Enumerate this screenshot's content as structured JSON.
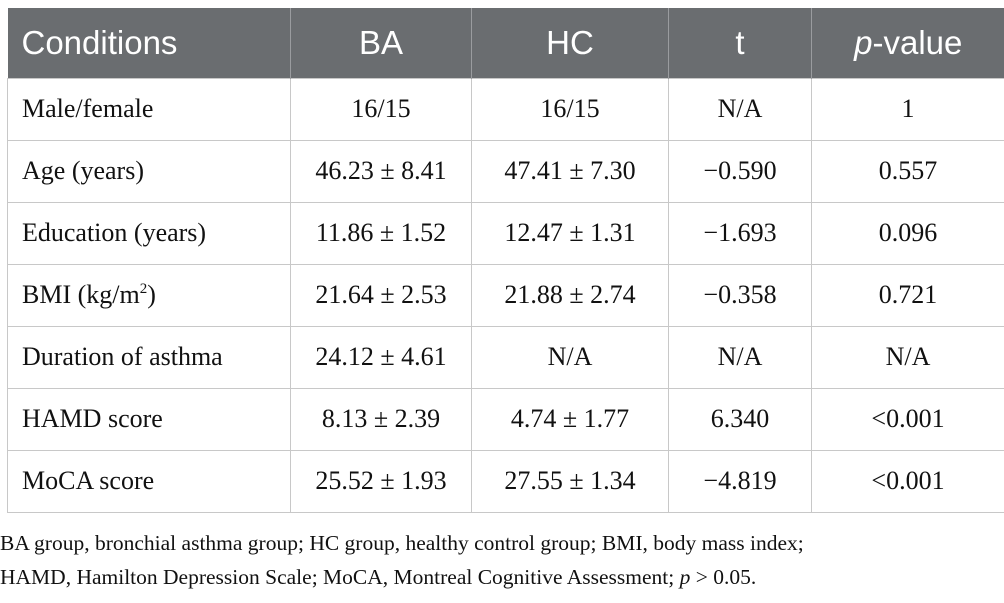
{
  "table": {
    "headers": {
      "conditions": "Conditions",
      "ba": "BA",
      "hc": "HC",
      "t": "t",
      "p_prefix": "p",
      "p_suffix": "-value"
    },
    "rows": [
      {
        "condition": "Male/female",
        "ba": "16/15",
        "hc": "16/15",
        "t": "N/A",
        "p": "1"
      },
      {
        "condition": "Age (years)",
        "ba": "46.23 ± 8.41",
        "hc": "47.41 ± 7.30",
        "t": "−0.590",
        "p": "0.557"
      },
      {
        "condition": "Education (years)",
        "ba": "11.86 ± 1.52",
        "hc": "12.47 ± 1.31",
        "t": "−1.693",
        "p": "0.096"
      },
      {
        "condition_base": "BMI (kg/m",
        "condition_sup": "2",
        "condition_end": ")",
        "ba": "21.64 ± 2.53",
        "hc": "21.88 ± 2.74",
        "t": "−0.358",
        "p": "0.721"
      },
      {
        "condition": "Duration of asthma",
        "ba": "24.12 ± 4.61",
        "hc": "N/A",
        "t": "N/A",
        "p": "N/A"
      },
      {
        "condition": "HAMD score",
        "ba": "8.13 ± 2.39",
        "hc": "4.74 ± 1.77",
        "t": "6.340",
        "p": "<0.001"
      },
      {
        "condition": "MoCA score",
        "ba": "25.52 ± 1.93",
        "hc": "27.55 ± 1.34",
        "t": "−4.819",
        "p": "<0.001"
      }
    ]
  },
  "footnote": {
    "line1": "BA group, bronchial asthma group; HC group, healthy control group; BMI, body mass index;",
    "line2_pre": "HAMD, Hamilton Depression Scale; MoCA, Montreal Cognitive Assessment; ",
    "line2_p": "p",
    "line2_post": " > 0.05."
  }
}
